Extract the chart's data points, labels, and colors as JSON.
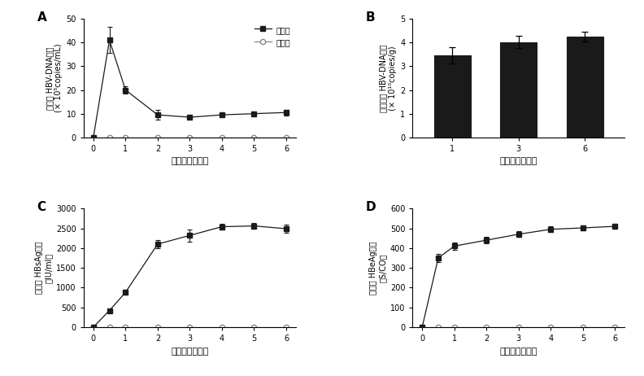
{
  "panel_A": {
    "x_model": [
      0,
      0.5,
      1,
      2,
      3,
      4,
      5,
      6
    ],
    "y_model": [
      0,
      41,
      20,
      9.5,
      8.5,
      9.5,
      10,
      10.5
    ],
    "yerr_model": [
      0,
      5.5,
      1.5,
      2.0,
      0.8,
      0.8,
      0.8,
      1.2
    ],
    "x_ctrl": [
      0,
      0.5,
      1,
      2,
      3,
      4,
      5,
      6
    ],
    "y_ctrl": [
      0,
      0,
      0,
      0,
      0,
      0,
      0,
      0
    ],
    "yerr_ctrl": [
      0,
      0,
      0,
      0,
      0,
      0,
      0,
      0
    ],
    "ylabel_line1": "血清中 HBV-DNA含量",
    "ylabel_line2": "(× 10⁵copies/mL)",
    "xlabel": "建模时间（月）",
    "ylim": [
      0,
      50
    ],
    "yticks": [
      0,
      10,
      20,
      30,
      40,
      50
    ],
    "xticks": [
      0,
      1,
      2,
      3,
      4,
      5,
      6
    ],
    "legend_model": "模型组",
    "legend_ctrl": "对照组",
    "panel_label": "A"
  },
  "panel_B": {
    "x": [
      1,
      3,
      6
    ],
    "y": [
      3.45,
      4.02,
      4.25
    ],
    "yerr": [
      0.35,
      0.25,
      0.22
    ],
    "ylabel_line1": "肝组织中 HBV-DNA含量",
    "ylabel_line2": "(× 10¹⁰copies/g)",
    "xlabel": "建模时间（月）",
    "ylim": [
      0,
      5
    ],
    "yticks": [
      0,
      1,
      2,
      3,
      4,
      5
    ],
    "xticks": [
      1,
      3,
      6
    ],
    "panel_label": "B"
  },
  "panel_C": {
    "x_model": [
      0,
      0.5,
      1,
      2,
      3,
      4,
      5,
      6
    ],
    "y_model": [
      0,
      420,
      880,
      2100,
      2320,
      2540,
      2560,
      2490
    ],
    "yerr_model": [
      0,
      30,
      60,
      100,
      150,
      80,
      80,
      100
    ],
    "x_ctrl": [
      0,
      0.5,
      1,
      2,
      3,
      4,
      5,
      6
    ],
    "y_ctrl": [
      0,
      0,
      0,
      0,
      0,
      0,
      0,
      0
    ],
    "yerr_ctrl": [
      0,
      0,
      0,
      0,
      0,
      0,
      0,
      0
    ],
    "ylabel_line1": "血清中 HBsAg含量",
    "ylabel_line2": "（IU/ml）",
    "xlabel": "建模时间（月）",
    "ylim": [
      0,
      3000
    ],
    "yticks": [
      0,
      500,
      1000,
      1500,
      2000,
      2500,
      3000
    ],
    "xticks": [
      0,
      1,
      2,
      3,
      4,
      5,
      6
    ],
    "panel_label": "C"
  },
  "panel_D": {
    "x_model": [
      0,
      0.5,
      1,
      2,
      3,
      4,
      5,
      6
    ],
    "y_model": [
      0,
      350,
      410,
      440,
      470,
      495,
      502,
      510
    ],
    "yerr_model": [
      0,
      20,
      18,
      15,
      15,
      15,
      12,
      12
    ],
    "x_ctrl": [
      0,
      0.5,
      1,
      2,
      3,
      4,
      5,
      6
    ],
    "y_ctrl": [
      0,
      0,
      0,
      0,
      0,
      0,
      0,
      0
    ],
    "yerr_ctrl": [
      0,
      0,
      0,
      0,
      0,
      0,
      0,
      0
    ],
    "ylabel_line1": "血清中 HBeAg含量",
    "ylabel_line2": "（S/CO）",
    "xlabel": "建模时间（月）",
    "ylim": [
      0,
      600
    ],
    "yticks": [
      0,
      100,
      200,
      300,
      400,
      500,
      600
    ],
    "xticks": [
      0,
      1,
      2,
      3,
      4,
      5,
      6
    ],
    "panel_label": "D"
  },
  "line_color_model": "#1a1a1a",
  "line_color_ctrl": "#888888",
  "bar_color": "#1a1a1a",
  "bg_color": "#ffffff"
}
